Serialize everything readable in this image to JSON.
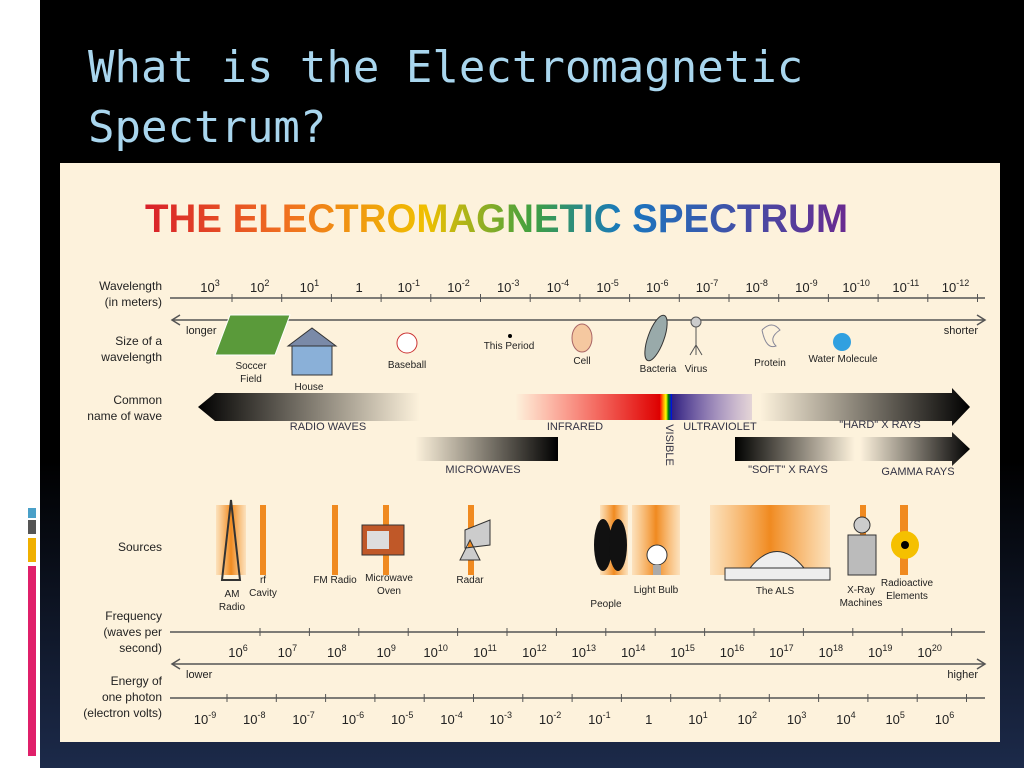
{
  "slide": {
    "title": "What is the Electromagnetic Spectrum?"
  },
  "diagram": {
    "title": "THE ELECTROMAGNETIC SPECTRUM",
    "row_labels": {
      "wavelength": [
        "Wavelength",
        "(in meters)"
      ],
      "size": [
        "Size of a",
        "wavelength"
      ],
      "name": [
        "Common",
        "name of wave"
      ],
      "sources": [
        "Sources"
      ],
      "frequency": [
        "Frequency",
        "(waves per",
        "second)"
      ],
      "energy": [
        "Energy of",
        "one photon",
        "(electron volts)"
      ]
    },
    "wavelength_ticks": [
      [
        "10",
        "3"
      ],
      [
        "10",
        "2"
      ],
      [
        "10",
        "1"
      ],
      [
        "1"
      ],
      [
        "10",
        "-1"
      ],
      [
        "10",
        "-2"
      ],
      [
        "10",
        "-3"
      ],
      [
        "10",
        "-4"
      ],
      [
        "10",
        "-5"
      ],
      [
        "10",
        "-6"
      ],
      [
        "10",
        "-7"
      ],
      [
        "10",
        "-8"
      ],
      [
        "10",
        "-9"
      ],
      [
        "10",
        "-10"
      ],
      [
        "10",
        "-11"
      ],
      [
        "10",
        "-12"
      ]
    ],
    "longer": "longer",
    "shorter": "shorter",
    "sizes": [
      [
        "Soccer",
        "Field"
      ],
      [
        "House"
      ],
      [
        "Baseball"
      ],
      [
        "This Period"
      ],
      [
        "Cell"
      ],
      [
        "Bacteria"
      ],
      [
        "Virus"
      ],
      [
        "Protein"
      ],
      [
        "Water Molecule"
      ]
    ],
    "waves": [
      "RADIO WAVES",
      "INFRARED",
      "VISIBLE",
      "ULTRAVIOLET",
      "\"HARD\" X RAYS",
      "MICROWAVES",
      "\"SOFT\" X RAYS",
      "GAMMA RAYS"
    ],
    "sources": [
      [
        "AM",
        "Radio"
      ],
      [
        "rf",
        "Cavity"
      ],
      [
        "FM Radio"
      ],
      [
        "Microwave",
        "Oven"
      ],
      [
        "Radar"
      ],
      [
        "People"
      ],
      [
        "Light Bulb"
      ],
      [
        "The ALS"
      ],
      [
        "X-Ray",
        "Machines"
      ],
      [
        "Radioactive",
        "Elements"
      ]
    ],
    "frequency_ticks": [
      [
        "10",
        "6"
      ],
      [
        "10",
        "7"
      ],
      [
        "10",
        "8"
      ],
      [
        "10",
        "9"
      ],
      [
        "10",
        "10"
      ],
      [
        "10",
        "11"
      ],
      [
        "10",
        "12"
      ],
      [
        "10",
        "13"
      ],
      [
        "10",
        "14"
      ],
      [
        "10",
        "15"
      ],
      [
        "10",
        "16"
      ],
      [
        "10",
        "17"
      ],
      [
        "10",
        "18"
      ],
      [
        "10",
        "19"
      ],
      [
        "10",
        "20"
      ]
    ],
    "lower": "lower",
    "higher": "higher",
    "energy_ticks": [
      [
        "10",
        "-9"
      ],
      [
        "10",
        "-8"
      ],
      [
        "10",
        "-7"
      ],
      [
        "10",
        "-6"
      ],
      [
        "10",
        "-5"
      ],
      [
        "10",
        "-4"
      ],
      [
        "10",
        "-3"
      ],
      [
        "10",
        "-2"
      ],
      [
        "10",
        "-1"
      ],
      [
        "1"
      ],
      [
        "10",
        "1"
      ],
      [
        "10",
        "2"
      ],
      [
        "10",
        "3"
      ],
      [
        "10",
        "4"
      ],
      [
        "10",
        "5"
      ],
      [
        "10",
        "6"
      ]
    ]
  }
}
